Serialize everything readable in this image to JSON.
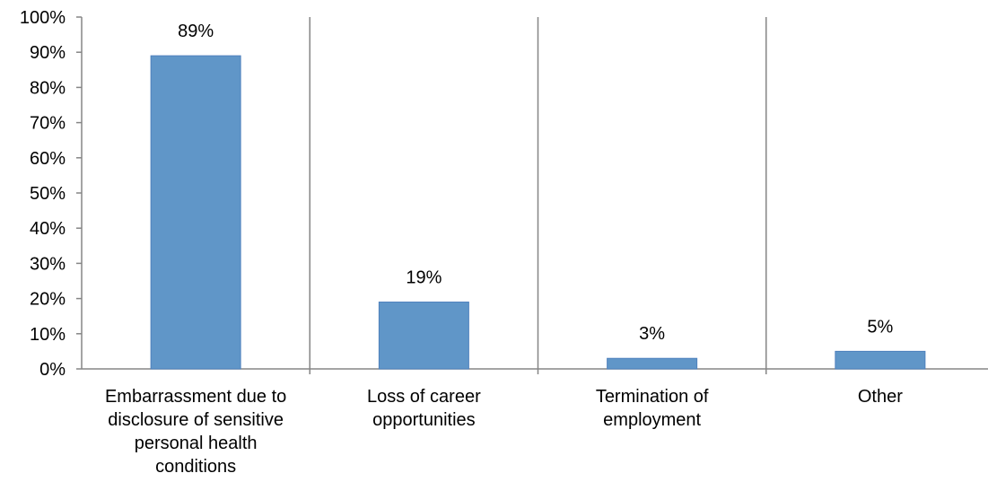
{
  "chart_data": {
    "type": "bar",
    "categories": [
      [
        "Embarrassment due to",
        "disclosure of sensitive",
        "personal health",
        "conditions"
      ],
      [
        "Loss of career",
        "opportunities"
      ],
      [
        "Termination of",
        "employment"
      ],
      [
        "Other"
      ]
    ],
    "values": [
      89,
      19,
      3,
      5
    ],
    "data_labels": [
      "89%",
      "19%",
      "3%",
      "5%"
    ],
    "y_ticks": [
      "0%",
      "10%",
      "20%",
      "30%",
      "40%",
      "50%",
      "60%",
      "70%",
      "80%",
      "90%",
      "100%"
    ],
    "ylim": [
      0,
      100
    ],
    "title": "",
    "xlabel": "",
    "ylabel": "",
    "grid": "vertical category separators",
    "legend": "none",
    "colors": {
      "bar_fill": "#6096C8",
      "bar_edge": "#4F81BD",
      "axis": "#868686",
      "text": "#000000"
    }
  }
}
